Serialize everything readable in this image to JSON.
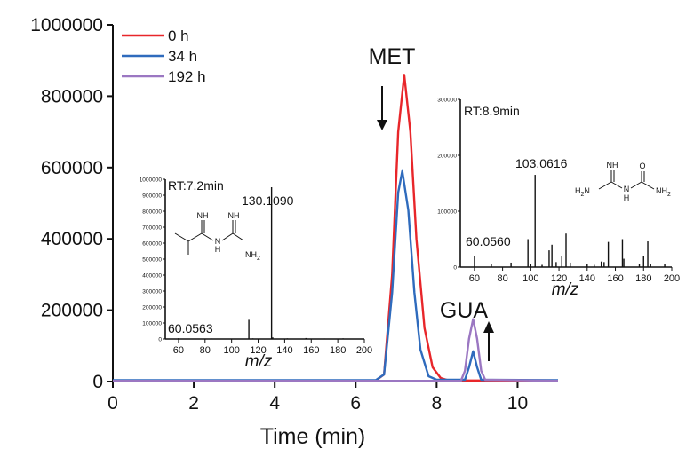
{
  "chart_data": [
    {
      "type": "line",
      "xlabel": "Time (min)",
      "ylabel": "",
      "xlim": [
        0,
        11
      ],
      "ylim": [
        0,
        1000000
      ],
      "xticks": [
        "0",
        "2",
        "4",
        "6",
        "8",
        "10"
      ],
      "yticks": [
        "0",
        "200000",
        "400000",
        "600000",
        "800000",
        "1000000"
      ],
      "legend_position": "top-left",
      "series": [
        {
          "name": "0 h",
          "color": "#e8262a",
          "points": [
            [
              0,
              3000
            ],
            [
              6.5,
              3000
            ],
            [
              6.7,
              20000
            ],
            [
              6.9,
              300000
            ],
            [
              7.05,
              700000
            ],
            [
              7.2,
              860000
            ],
            [
              7.35,
              700000
            ],
            [
              7.5,
              400000
            ],
            [
              7.7,
              150000
            ],
            [
              7.9,
              40000
            ],
            [
              8.1,
              10000
            ],
            [
              8.3,
              3000
            ],
            [
              11,
              3000
            ]
          ]
        },
        {
          "name": "34 h",
          "color": "#2f6bbd",
          "points": [
            [
              0,
              4000
            ],
            [
              6.5,
              4000
            ],
            [
              6.7,
              20000
            ],
            [
              6.9,
              250000
            ],
            [
              7.05,
              530000
            ],
            [
              7.15,
              590000
            ],
            [
              7.3,
              480000
            ],
            [
              7.45,
              250000
            ],
            [
              7.6,
              90000
            ],
            [
              7.8,
              15000
            ],
            [
              8.0,
              5000
            ],
            [
              8.7,
              5000
            ],
            [
              8.8,
              40000
            ],
            [
              8.9,
              85000
            ],
            [
              9.0,
              40000
            ],
            [
              9.1,
              5000
            ],
            [
              11,
              4000
            ]
          ]
        },
        {
          "name": "192 h",
          "color": "#9b77c2",
          "points": [
            [
              0,
              2000
            ],
            [
              8.6,
              2000
            ],
            [
              8.7,
              30000
            ],
            [
              8.8,
              120000
            ],
            [
              8.9,
              175000
            ],
            [
              9.0,
              120000
            ],
            [
              9.1,
              30000
            ],
            [
              9.2,
              5000
            ],
            [
              11,
              2000
            ]
          ]
        }
      ]
    },
    {
      "type": "bar",
      "title": "RT:7.2min",
      "xlabel": "m/z",
      "xlim": [
        50,
        200
      ],
      "ylim": [
        0,
        1000000
      ],
      "xticks": [
        "60",
        "80",
        "100",
        "120",
        "140",
        "160",
        "180",
        "200"
      ],
      "yticks": [
        "0",
        "100000",
        "200000",
        "300000",
        "400000",
        "500000",
        "600000",
        "700000",
        "800000",
        "900000",
        "1000000"
      ],
      "peaks": [
        [
          60.0563,
          5000
        ],
        [
          85,
          3000
        ],
        [
          100,
          2500
        ],
        [
          113,
          120000
        ],
        [
          116,
          4000
        ],
        [
          130.109,
          950000
        ],
        [
          131,
          10000
        ],
        [
          142,
          4000
        ],
        [
          156,
          6000
        ],
        [
          170,
          3000
        ],
        [
          184,
          4000
        ],
        [
          195,
          2000
        ]
      ],
      "peak_labels": [
        {
          "label": "130.1090",
          "mz": 130.109
        },
        {
          "label": "60.0563",
          "mz": 60.0563
        }
      ]
    },
    {
      "type": "bar",
      "title": "RT:8.9min",
      "xlabel": "m/z",
      "xlim": [
        50,
        200
      ],
      "ylim": [
        0,
        300000
      ],
      "xticks": [
        "60",
        "80",
        "100",
        "120",
        "140",
        "160",
        "180",
        "200"
      ],
      "yticks": [
        "0",
        "100000",
        "200000",
        "300000"
      ],
      "peaks": [
        [
          60.056,
          20000
        ],
        [
          72,
          5000
        ],
        [
          86,
          8000
        ],
        [
          98,
          50000
        ],
        [
          100,
          6000
        ],
        [
          103.0616,
          165000
        ],
        [
          108,
          4000
        ],
        [
          113,
          30000
        ],
        [
          115,
          40000
        ],
        [
          118,
          9000
        ],
        [
          122,
          20000
        ],
        [
          125,
          60000
        ],
        [
          128,
          8000
        ],
        [
          140,
          5000
        ],
        [
          145,
          4000
        ],
        [
          150,
          10000
        ],
        [
          152,
          9000
        ],
        [
          155,
          45000
        ],
        [
          165,
          50000
        ],
        [
          166,
          15000
        ],
        [
          177,
          6000
        ],
        [
          180,
          20000
        ],
        [
          183,
          46000
        ],
        [
          185,
          5000
        ],
        [
          195,
          5000
        ]
      ],
      "peak_labels": [
        {
          "label": "103.0616",
          "mz": 103.0616
        },
        {
          "label": "60.0560",
          "mz": 60.056
        }
      ]
    }
  ],
  "annotations": {
    "met": "MET",
    "gua": "GUA"
  },
  "structures": {
    "metformin": {
      "imine1": "NH",
      "imine2": "NH",
      "nh": "N",
      "h": "H",
      "nh2": "NH",
      "nh2_sub": "2"
    },
    "guanylurea": {
      "imine": "NH",
      "oxygen": "O",
      "nh": "N",
      "h": "H",
      "h2n": "H",
      "h2n_sub": "2",
      "h2n_n": "N",
      "nh2": "NH",
      "nh2_sub": "2"
    }
  }
}
